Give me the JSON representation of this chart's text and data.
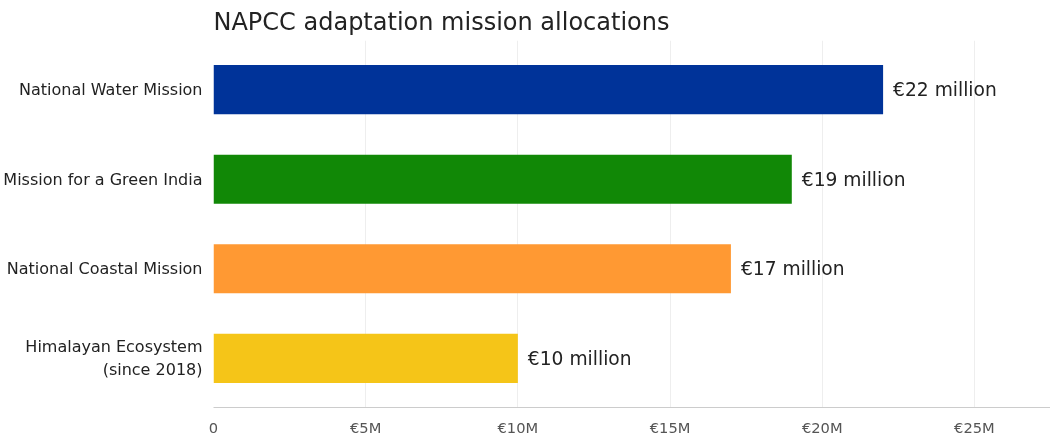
{
  "chart_data": {
    "type": "bar",
    "orientation": "horizontal",
    "title": "NAPCC adaptation mission allocations",
    "categories": [
      "National Water Mission",
      "Mission for a Green India",
      "National Coastal Mission",
      "Himalayan Ecosystem\n(since 2018)"
    ],
    "values": [
      22,
      19,
      17,
      10
    ],
    "colors": [
      "#003399",
      "#118806",
      "#ff9933",
      "#f5c518"
    ],
    "value_labels": [
      "€22 million",
      "€19 million",
      "€17 million",
      "€10 million"
    ],
    "xlim": [
      0,
      27.5
    ],
    "xticks": [
      0,
      {
        "value": 5,
        "label": "€5M"
      },
      {
        "value": 10,
        "label": "€10M"
      },
      {
        "value": 15,
        "label": "€15M"
      },
      {
        "value": 20,
        "label": "€20M"
      },
      {
        "value": 25,
        "label": "€25M"
      }
    ],
    "grid": "x"
  }
}
